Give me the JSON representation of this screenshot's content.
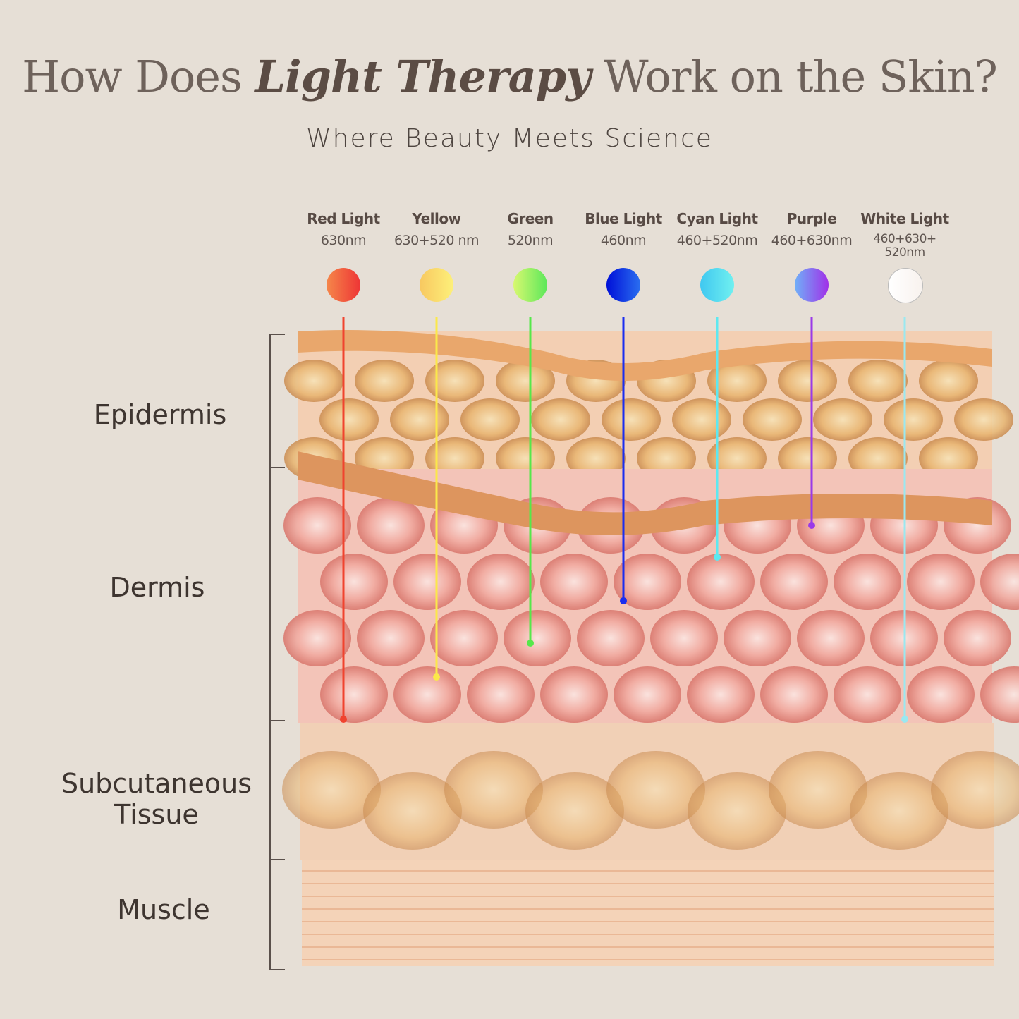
{
  "header": {
    "title_pre": "How Does ",
    "title_em": "Light Therapy",
    "title_post": " Work on the Skin?",
    "subtitle": "Where Beauty Meets Science"
  },
  "lights": [
    {
      "name": "Red Light",
      "wavelength": "630nm",
      "color": "#f0432e",
      "gradient": [
        "#f5874a",
        "#ee3535"
      ]
    },
    {
      "name": "Yellow",
      "wavelength": "630+520 nm",
      "color": "#fbe84a",
      "gradient": [
        "#f8c860",
        "#fdf07a"
      ]
    },
    {
      "name": "Green",
      "wavelength": "520nm",
      "color": "#56e84a",
      "gradient": [
        "#d8f870",
        "#5ce85a"
      ]
    },
    {
      "name": "Blue Light",
      "wavelength": "460nm",
      "color": "#1a2df0",
      "gradient": [
        "#0010d8",
        "#2a6ef0"
      ]
    },
    {
      "name": "Cyan Light",
      "wavelength": "460+520nm",
      "color": "#5ee8f0",
      "gradient": [
        "#40c8f0",
        "#70f0f0"
      ]
    },
    {
      "name": "Purple",
      "wavelength": "460+630nm",
      "color": "#9a3ae8",
      "gradient": [
        "#70b0f8",
        "#a030e8"
      ]
    },
    {
      "name": "White Light",
      "wavelength": "460+630+ 520nm",
      "color": "#9ae8f0",
      "gradient": [
        "#ffffff",
        "#f8f2ee"
      ]
    }
  ],
  "layers": [
    {
      "name": "Epidermis"
    },
    {
      "name": "Dermis"
    },
    {
      "name": "Subcutaneous Tissue"
    },
    {
      "name": "Muscle"
    }
  ]
}
